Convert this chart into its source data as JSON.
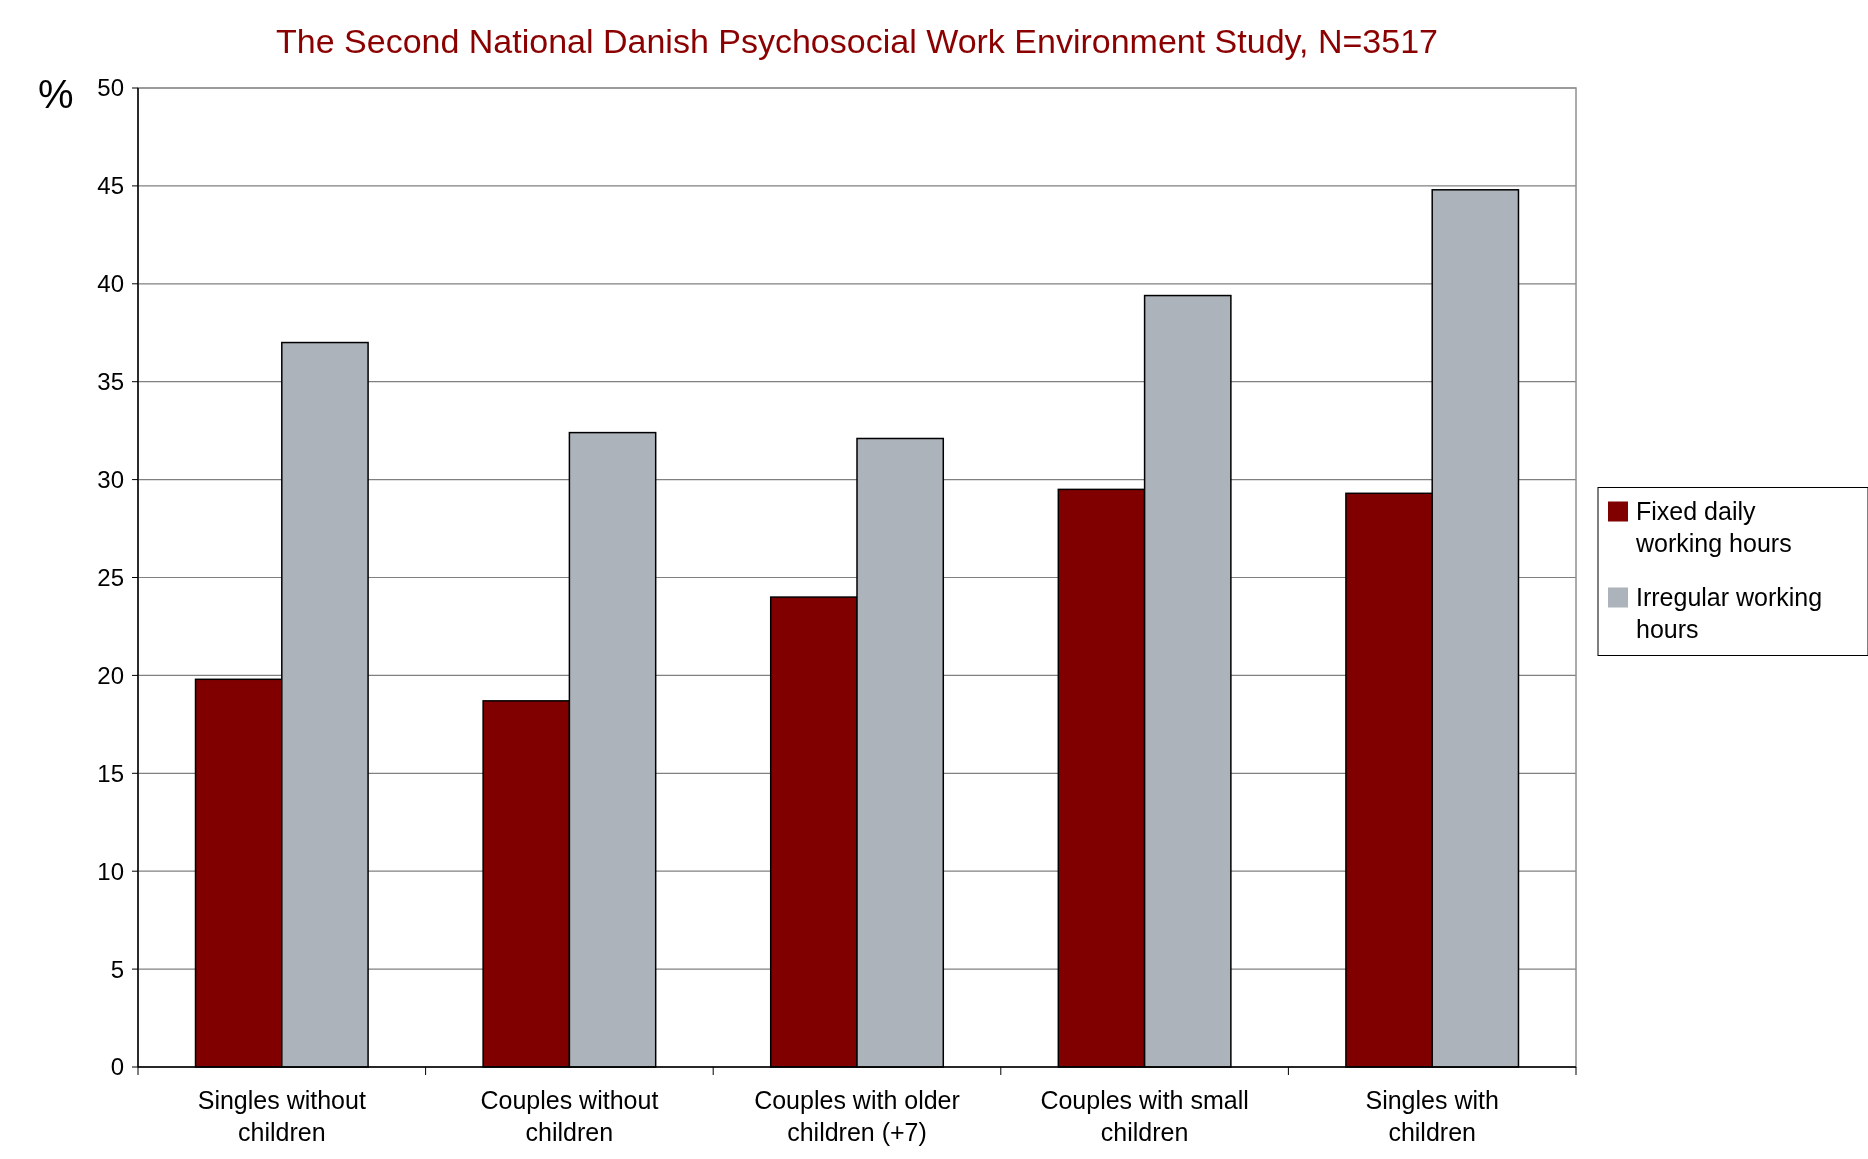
{
  "chart_data": {
    "type": "bar",
    "title": "The Second National Danish Psychosocial Work Environment Study, N=3517",
    "ylabel": "%",
    "categories": [
      "Singles without children",
      "Couples without children",
      "Couples with older children (+7)",
      "Couples with small children",
      "Singles with children"
    ],
    "series": [
      {
        "name": "Fixed daily working hours",
        "color": "#800000",
        "values": [
          19.8,
          18.7,
          24.0,
          29.5,
          29.3
        ]
      },
      {
        "name": "Irregular working hours",
        "color": "#adb3ba",
        "values": [
          37.0,
          32.4,
          32.1,
          39.4,
          44.8
        ]
      }
    ],
    "ylim": [
      0,
      50
    ],
    "yticks": [
      0,
      5,
      10,
      15,
      20,
      25,
      30,
      35,
      40,
      45,
      50
    ],
    "grid": "y",
    "legend": "right"
  }
}
